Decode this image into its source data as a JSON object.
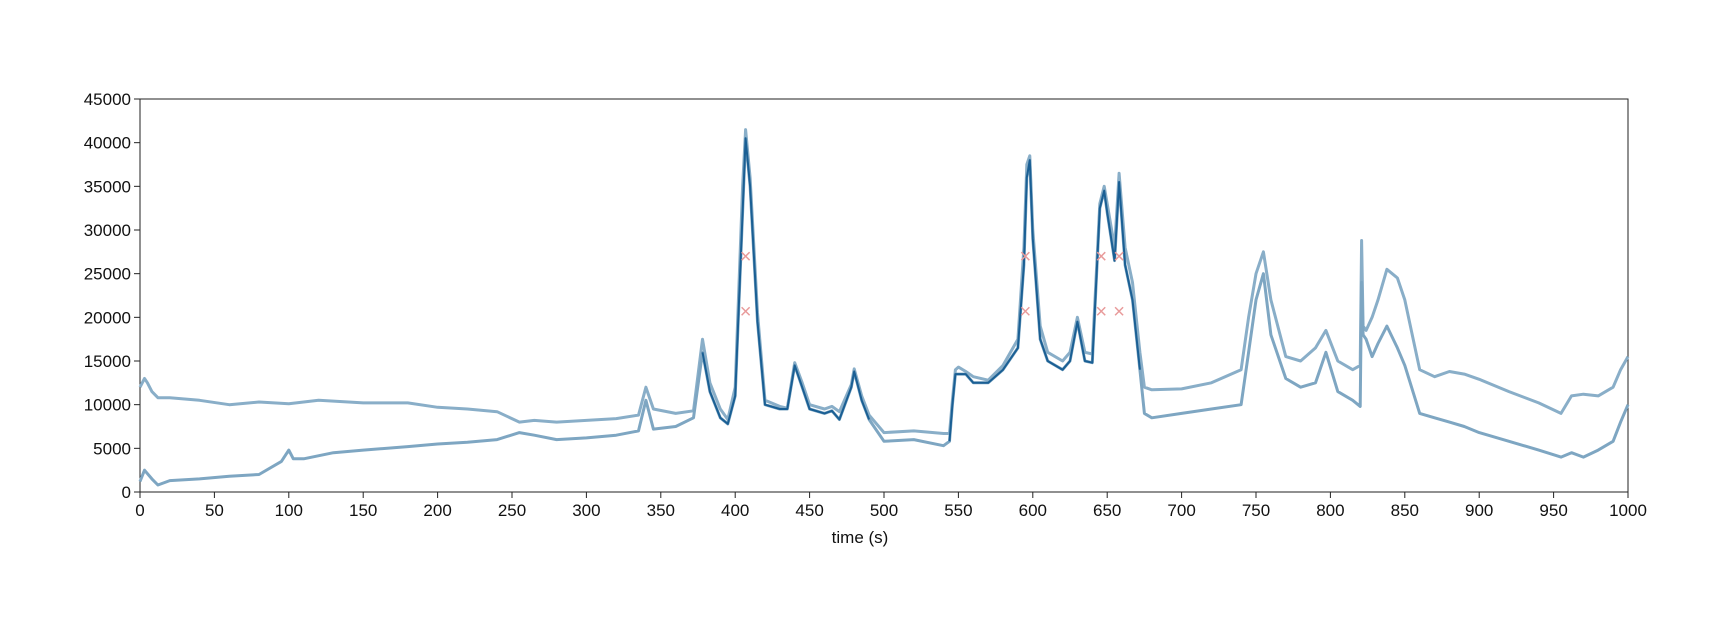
{
  "chart_data": {
    "type": "line",
    "title": "",
    "xlabel": "time (s)",
    "ylabel": "",
    "xlim": [
      0,
      1000
    ],
    "ylim": [
      0,
      45000
    ],
    "xticks": [
      0,
      50,
      100,
      150,
      200,
      250,
      300,
      350,
      400,
      450,
      500,
      550,
      600,
      650,
      700,
      750,
      800,
      850,
      900,
      950,
      1000
    ],
    "yticks": [
      0,
      5000,
      10000,
      15000,
      20000,
      25000,
      30000,
      35000,
      40000,
      45000
    ],
    "grid": false,
    "legend": "none",
    "colors": {
      "upper": "#89aec8",
      "lower": "#7ea6c2",
      "highlight": "#1a5f94",
      "marker": "#e89a9a"
    },
    "series": [
      {
        "x": [
          0,
          3,
          5,
          8,
          12,
          20,
          40,
          60,
          80,
          100,
          120,
          150,
          180,
          200,
          220,
          240,
          255,
          265,
          280,
          300,
          320,
          335,
          340,
          345,
          360,
          372,
          378,
          383,
          390,
          395,
          400,
          405,
          407,
          410,
          415,
          420,
          430,
          435,
          440,
          445,
          450,
          460,
          465,
          470,
          478,
          480,
          485,
          490,
          500,
          520,
          540,
          544,
          546,
          548,
          550,
          555,
          560,
          570,
          580,
          590,
          594,
          596,
          598,
          600,
          605,
          610,
          620,
          625,
          630,
          635,
          640,
          645,
          648,
          650,
          655,
          658,
          662,
          667,
          672,
          675,
          680,
          700,
          720,
          740,
          745,
          750,
          755,
          760,
          770,
          780,
          790,
          797,
          805,
          815,
          820,
          821,
          822,
          824,
          828,
          832,
          838,
          845,
          850,
          860,
          870,
          880,
          890,
          900,
          920,
          940,
          955,
          962,
          970,
          980,
          990,
          995,
          1000
        ],
        "y": [
          12000,
          13000,
          12500,
          11500,
          10800,
          10800,
          10500,
          10000,
          10300,
          10100,
          10500,
          10200,
          10200,
          9700,
          9500,
          9200,
          8000,
          8200,
          8000,
          8200,
          8400,
          8800,
          12000,
          9500,
          9000,
          9300,
          17500,
          12500,
          9500,
          8300,
          12000,
          35000,
          41500,
          36000,
          20500,
          10500,
          9800,
          9600,
          14800,
          12500,
          10000,
          9500,
          9800,
          9200,
          12300,
          14100,
          11000,
          8800,
          6800,
          7000,
          6700,
          6700,
          10500,
          14000,
          14300,
          13800,
          13200,
          12800,
          14500,
          17500,
          28000,
          37500,
          38500,
          30000,
          19000,
          16000,
          15000,
          16000,
          20000,
          16000,
          15800,
          33000,
          35000,
          33000,
          28000,
          36500,
          28000,
          24000,
          16000,
          12000,
          11700,
          11800,
          12500,
          14000,
          20000,
          25000,
          27500,
          22000,
          15500,
          15000,
          16500,
          18500,
          15000,
          14000,
          14500,
          28800,
          19000,
          18500,
          20000,
          22000,
          25500,
          24500,
          22000,
          14000,
          13200,
          13800,
          13500,
          12900,
          11500,
          10200,
          9000,
          11000,
          11200,
          11000,
          12000,
          14000,
          15500
        ]
      },
      {
        "x": [
          0,
          3,
          8,
          12,
          20,
          40,
          60,
          80,
          95,
          100,
          103,
          110,
          130,
          150,
          180,
          200,
          220,
          240,
          255,
          265,
          280,
          300,
          320,
          335,
          340,
          345,
          360,
          372,
          378,
          383,
          390,
          395,
          400,
          405,
          407,
          410,
          415,
          420,
          430,
          435,
          440,
          445,
          450,
          460,
          465,
          470,
          478,
          480,
          485,
          490,
          500,
          520,
          540,
          544,
          546,
          548,
          550,
          555,
          560,
          570,
          580,
          590,
          594,
          596,
          598,
          600,
          605,
          610,
          620,
          625,
          630,
          635,
          640,
          645,
          648,
          650,
          655,
          658,
          662,
          667,
          672,
          675,
          680,
          700,
          720,
          740,
          745,
          750,
          755,
          760,
          770,
          780,
          790,
          797,
          805,
          815,
          820,
          821,
          822,
          824,
          828,
          832,
          838,
          845,
          850,
          860,
          870,
          880,
          890,
          900,
          920,
          940,
          955,
          962,
          970,
          980,
          990,
          995,
          1000
        ],
        "y": [
          1200,
          2500,
          1500,
          800,
          1300,
          1500,
          1800,
          2000,
          3500,
          4800,
          3800,
          3800,
          4500,
          4800,
          5200,
          5500,
          5700,
          6000,
          6800,
          6500,
          6000,
          6200,
          6500,
          7000,
          10500,
          7200,
          7500,
          8500,
          16000,
          11500,
          8500,
          7800,
          11000,
          32000,
          40500,
          35000,
          19500,
          10000,
          9500,
          9500,
          14500,
          12000,
          9500,
          9000,
          9300,
          8300,
          12000,
          13800,
          10500,
          8300,
          5800,
          6000,
          5300,
          5800,
          10000,
          13500,
          13500,
          13500,
          12500,
          12500,
          14000,
          16500,
          26000,
          36000,
          38000,
          29000,
          17500,
          15000,
          14000,
          15000,
          19500,
          15000,
          14800,
          32500,
          34500,
          32000,
          26500,
          35500,
          26000,
          22000,
          14000,
          9000,
          8500,
          9000,
          9500,
          10000,
          16000,
          22000,
          25000,
          18000,
          13000,
          12000,
          12500,
          16000,
          11500,
          10500,
          9800,
          24000,
          18000,
          17500,
          15500,
          17000,
          19000,
          16500,
          14500,
          9000,
          8500,
          8000,
          7500,
          6800,
          5800,
          4800,
          4000,
          4500,
          4000,
          4800,
          5800,
          8000,
          10000
        ]
      }
    ],
    "highlight_ranges": [
      [
        375,
        490
      ],
      [
        544,
        672
      ]
    ],
    "markers": [
      {
        "x": 407,
        "y": 27000
      },
      {
        "x": 407,
        "y": 20700
      },
      {
        "x": 595,
        "y": 27000
      },
      {
        "x": 595,
        "y": 20700
      },
      {
        "x": 646,
        "y": 27000
      },
      {
        "x": 646,
        "y": 20700
      },
      {
        "x": 658,
        "y": 27000
      },
      {
        "x": 658,
        "y": 20700
      }
    ]
  }
}
